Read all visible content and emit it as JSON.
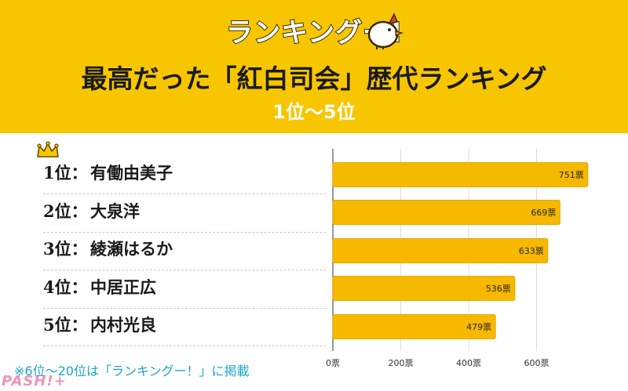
{
  "header": {
    "logo_text": "ランキングー!",
    "title": "最高だった「紅白司会」歴代ランキング",
    "subtitle": "1位〜5位"
  },
  "colors": {
    "header_bg": "#f7c600",
    "bar": "#f7b800",
    "bar_stroke": "#e6a800",
    "footnote": "#1aa6c8"
  },
  "icons": {
    "logo": "chicken-logo-icon",
    "crown": "crown-icon"
  },
  "chart_data": {
    "type": "bar",
    "orientation": "horizontal",
    "categories": [
      "有働由美子",
      "大泉洋",
      "綾瀬はるか",
      "中居正広",
      "内村光良"
    ],
    "rank_labels": [
      "1位：",
      "2位：",
      "3位：",
      "4位：",
      "5位："
    ],
    "values": [
      751,
      669,
      633,
      536,
      479
    ],
    "value_labels": [
      "751票",
      "669票",
      "633票",
      "536票",
      "479票"
    ],
    "xlim": [
      0,
      800
    ],
    "xticks": [
      0,
      200,
      400,
      600
    ],
    "xtick_labels": [
      "0票",
      "200票",
      "400票",
      "600票"
    ],
    "grid": true,
    "legend": "none"
  },
  "footnote": "※6位〜20位は「ランキングー！」に掲載",
  "watermark": "PASH!+"
}
